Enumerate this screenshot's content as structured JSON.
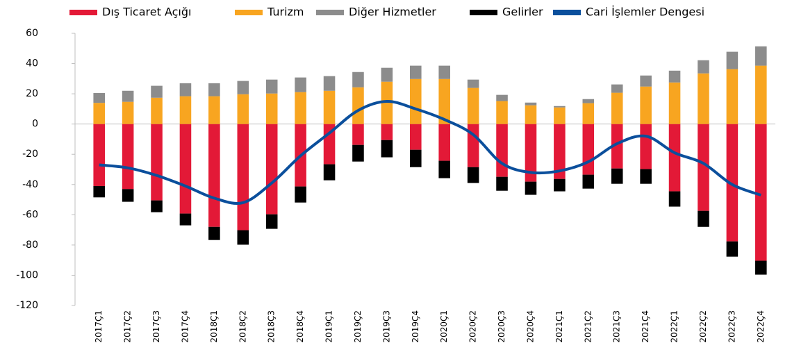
{
  "chart_data": {
    "type": "bar",
    "stacked": true,
    "categories": [
      "2017Ç1",
      "2017Ç2",
      "2017Ç3",
      "2017Ç4",
      "2018Ç1",
      "2018Ç2",
      "2018Ç3",
      "2018Ç4",
      "2019Ç1",
      "2019Ç2",
      "2019Ç3",
      "2019Ç4",
      "2020Ç1",
      "2020Ç2",
      "2020Ç3",
      "2020Ç4",
      "2021Ç1",
      "2021Ç2",
      "2021Ç3",
      "2021Ç4",
      "2022Ç1",
      "2022Ç2",
      "2022Ç3",
      "2022Ç4"
    ],
    "series": [
      {
        "name": "Dış Ticaret Açığı",
        "color": "#e31937",
        "type": "bar",
        "values": [
          -41.0,
          -43.0,
          -50.5,
          -59.2,
          -68.0,
          -70.2,
          -59.7,
          -41.3,
          -26.6,
          -13.8,
          -10.6,
          -17.0,
          -24.3,
          -28.5,
          -34.9,
          -38.1,
          -36.3,
          -33.5,
          -29.4,
          -29.8,
          -44.5,
          -57.4,
          -77.6,
          -90.4
        ]
      },
      {
        "name": "Turizm",
        "color": "#f8a520",
        "type": "bar",
        "values": [
          14.0,
          14.7,
          17.4,
          18.4,
          18.4,
          19.7,
          20.2,
          21.1,
          22.0,
          24.3,
          28.0,
          29.8,
          29.8,
          23.9,
          15.2,
          12.4,
          11.0,
          13.8,
          20.7,
          24.8,
          27.5,
          33.5,
          36.3,
          38.6
        ]
      },
      {
        "name": "Diğer Hizmetler",
        "color": "#8c8c8c",
        "type": "bar",
        "values": [
          6.5,
          7.3,
          7.9,
          8.6,
          8.6,
          8.8,
          9.2,
          9.7,
          9.7,
          10.1,
          9.2,
          8.8,
          8.8,
          5.5,
          4.1,
          1.8,
          0.9,
          2.7,
          5.5,
          7.3,
          7.8,
          8.7,
          11.5,
          12.8
        ]
      },
      {
        "name": "Gelirler",
        "color": "#000000",
        "type": "bar",
        "values": [
          -7.5,
          -8.4,
          -7.8,
          -7.8,
          -8.7,
          -9.6,
          -9.6,
          -10.6,
          -10.6,
          -11.0,
          -11.4,
          -11.5,
          -11.5,
          -10.5,
          -9.2,
          -8.7,
          -8.2,
          -9.2,
          -10.1,
          -9.7,
          -10.1,
          -10.6,
          -10.1,
          -9.2
        ]
      },
      {
        "name": "Cari İşlemler Dengesi",
        "color": "#0b4f9c",
        "type": "line",
        "values": [
          -27,
          -29,
          -34,
          -41,
          -49,
          -52,
          -39,
          -21,
          -6,
          9,
          15,
          10,
          3,
          -7,
          -26,
          -32,
          -31,
          -25,
          -13,
          -8,
          -19,
          -26,
          -40,
          -47
        ]
      }
    ],
    "ylim": [
      -120,
      60
    ],
    "yticks": [
      -120,
      -100,
      -80,
      -60,
      -40,
      -20,
      0,
      20,
      40,
      60
    ],
    "grid": false
  }
}
